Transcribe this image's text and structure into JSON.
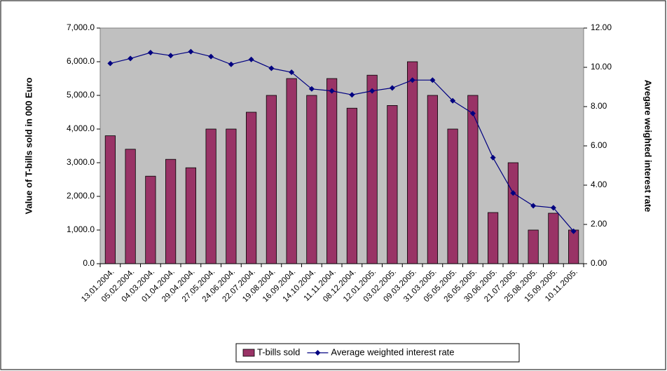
{
  "chart_data": {
    "type": "bar_line",
    "categories": [
      "13.01.2004.",
      "05.02.2004.",
      "04.03.2004.",
      "01.04.2004.",
      "29.04.2004.",
      "27.05.2004.",
      "24.06.2004.",
      "22.07.2004.",
      "19.08.2004.",
      "16.09.2004.",
      "14.10.2004.",
      "11.11.2004.",
      "08.12.2004.",
      "12.01.2005.",
      "03.02.2005.",
      "09.03.2005.",
      "31.03.2005.",
      "05.05.2005.",
      "26.05.2005.",
      "30.06.2005.",
      "21.07.2005.",
      "25.08.2005.",
      "15.09.2005.",
      "10.11.2005."
    ],
    "series": [
      {
        "name": "T-bills sold",
        "type": "bar",
        "color": "#993366",
        "values": [
          3800,
          3400,
          2600,
          3100,
          2850,
          4000,
          4000,
          4500,
          5000,
          5500,
          5000,
          5500,
          4620,
          5600,
          4700,
          6000,
          5000,
          4000,
          5000,
          1520,
          3000,
          1000,
          1500,
          1000
        ]
      },
      {
        "name": "Average weighted interest rate",
        "type": "line",
        "axis": "y2",
        "color": "#000080",
        "values": [
          10.2,
          10.45,
          10.75,
          10.6,
          10.8,
          10.55,
          10.15,
          10.4,
          9.95,
          9.75,
          8.9,
          8.8,
          8.6,
          8.8,
          8.95,
          9.35,
          9.35,
          8.3,
          7.65,
          5.4,
          3.6,
          2.95,
          2.85,
          1.65
        ]
      }
    ],
    "ylabel": "Value of T-bills sold in 000 Euro",
    "y2label": "Avegare weighted interest rate",
    "ylim": [
      0,
      7000
    ],
    "yticks": [
      {
        "value": 0,
        "label": "0.0"
      },
      {
        "value": 1000,
        "label": "1,000.0"
      },
      {
        "value": 2000,
        "label": "2,000.0"
      },
      {
        "value": 3000,
        "label": "3,000.0"
      },
      {
        "value": 4000,
        "label": "4,000.0"
      },
      {
        "value": 5000,
        "label": "5,000.0"
      },
      {
        "value": 6000,
        "label": "6,000.0"
      },
      {
        "value": 7000,
        "label": "7,000.0"
      }
    ],
    "y2lim": [
      0,
      12
    ],
    "y2ticks": [
      {
        "value": 0,
        "label": "0.00"
      },
      {
        "value": 2,
        "label": "2.00"
      },
      {
        "value": 4,
        "label": "4.00"
      },
      {
        "value": 6,
        "label": "6.00"
      },
      {
        "value": 8,
        "label": "8.00"
      },
      {
        "value": 10,
        "label": "10.00"
      },
      {
        "value": 12,
        "label": "12.00"
      }
    ],
    "legend": "bottom",
    "background": "#c0c0c0"
  }
}
